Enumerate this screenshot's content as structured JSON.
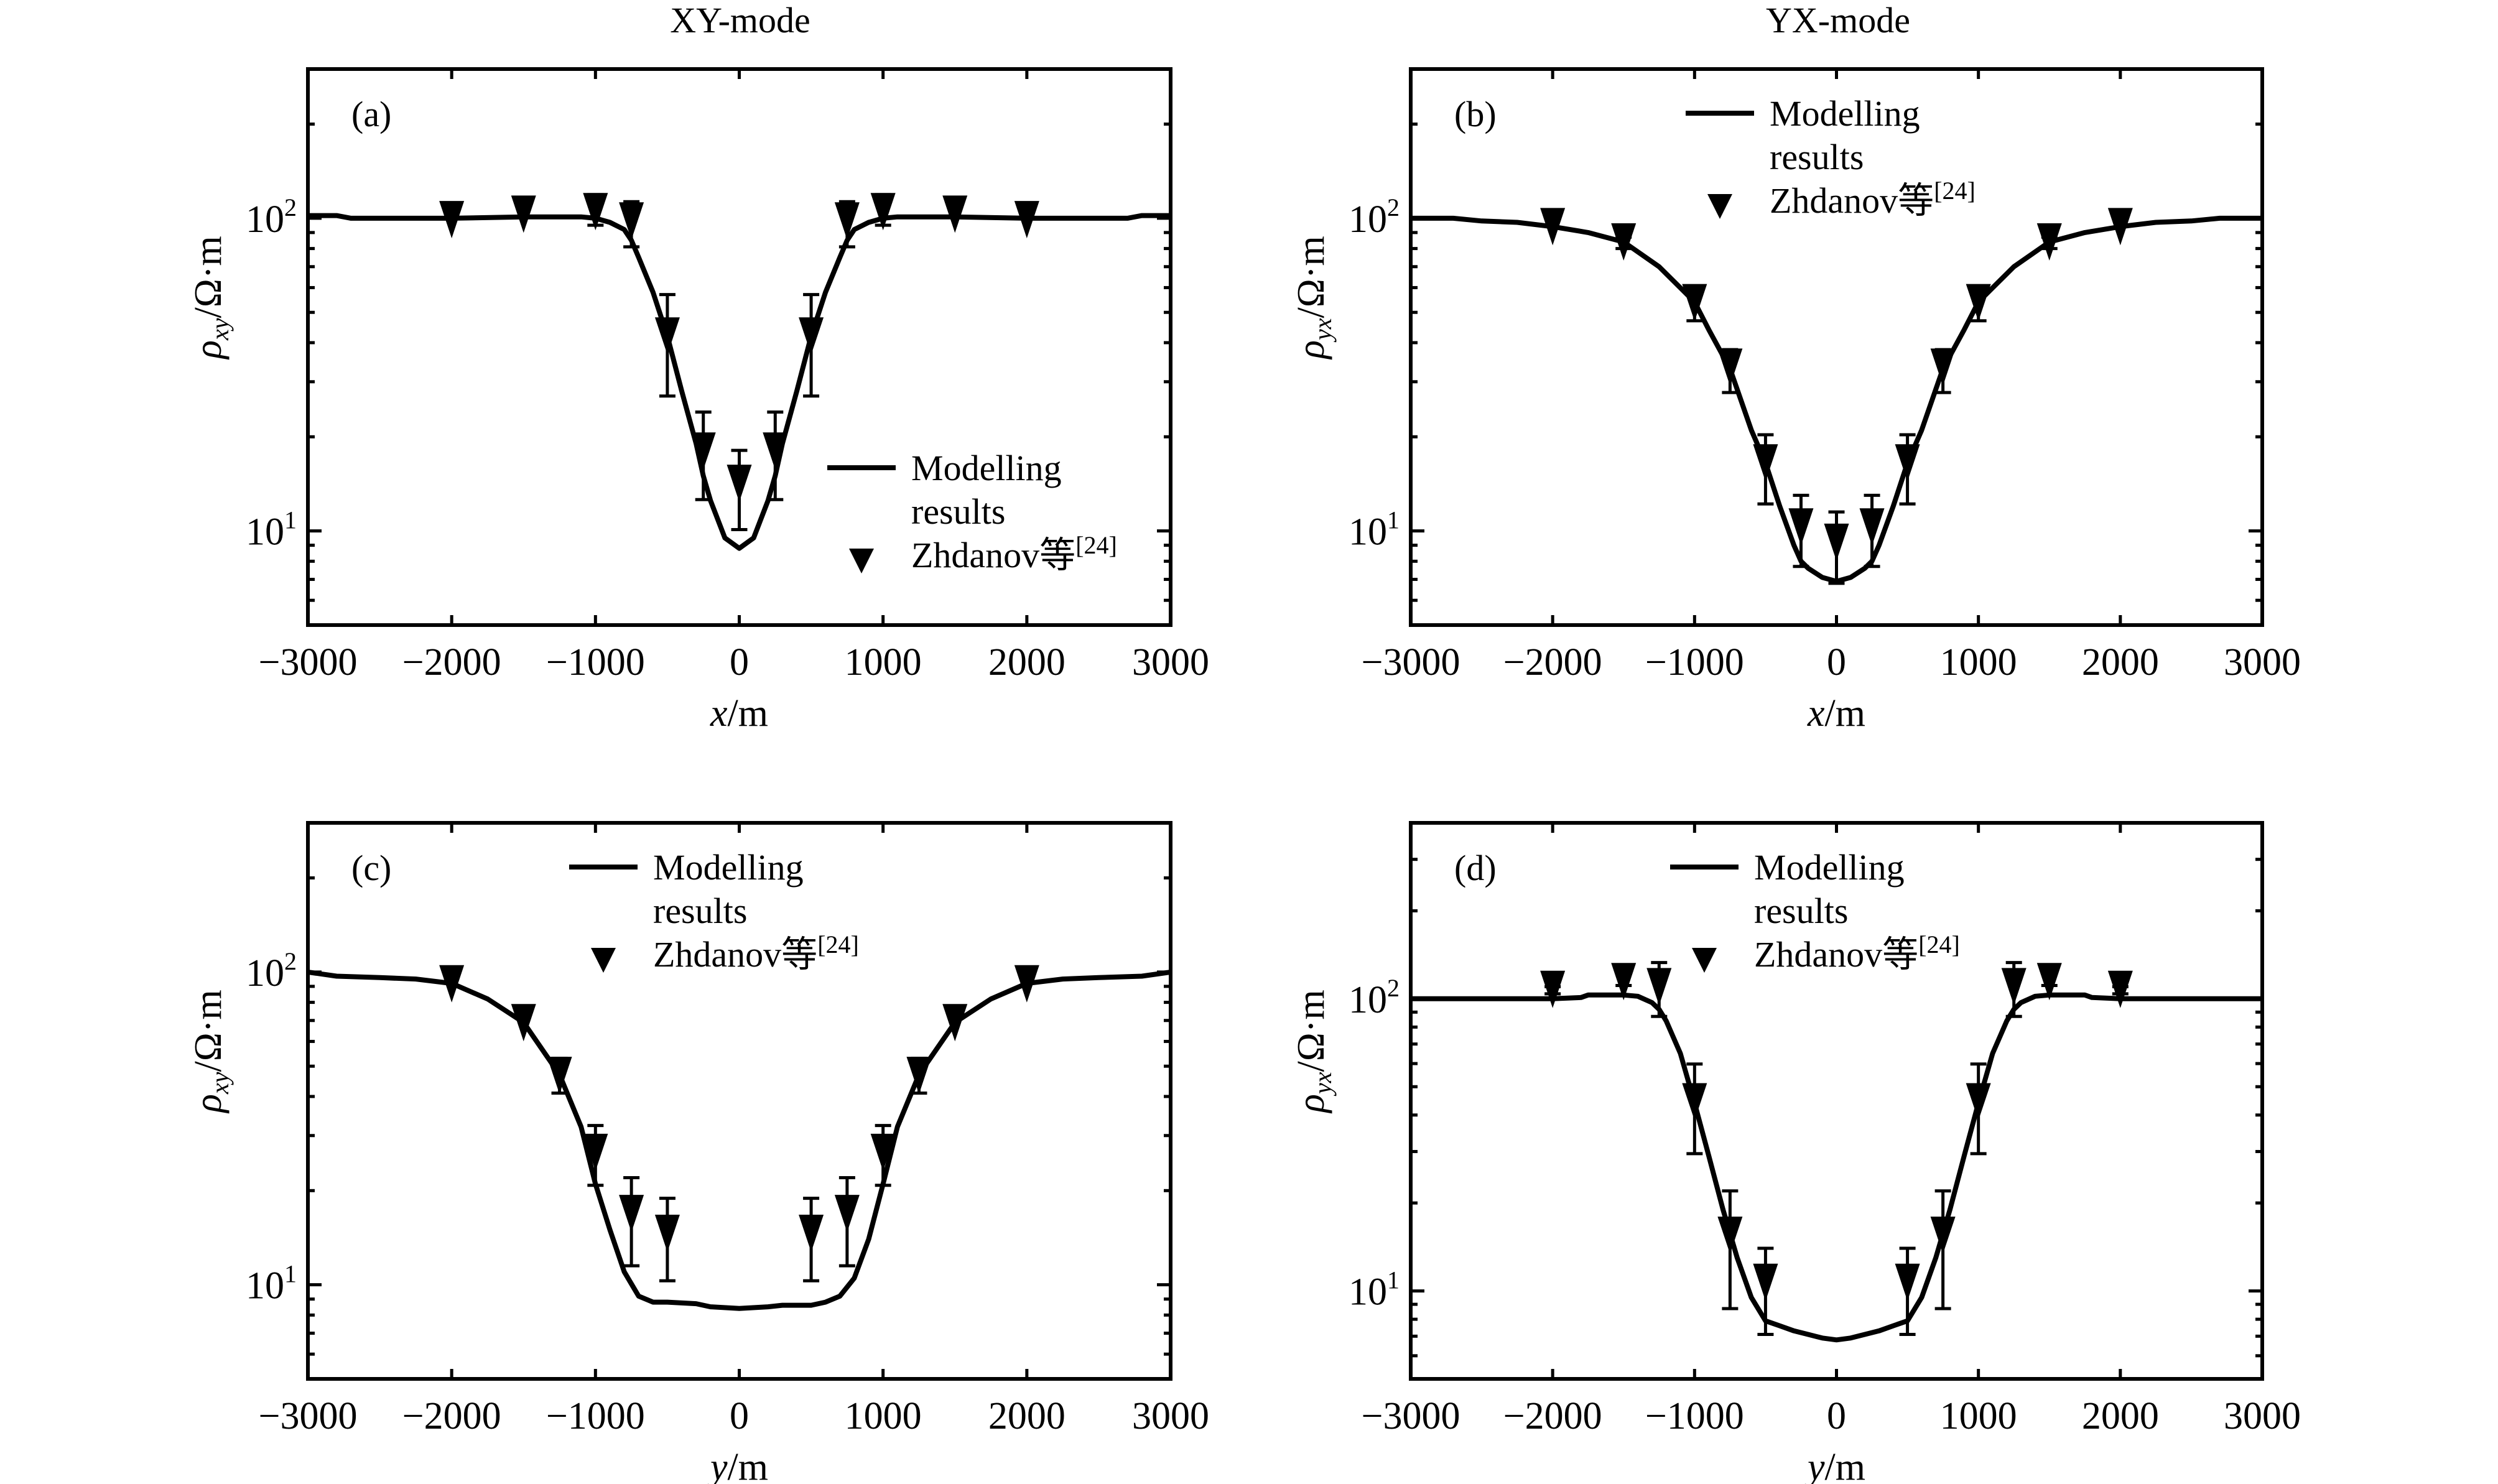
{
  "columns": [
    {
      "title": "XY-mode"
    },
    {
      "title": "YX-mode"
    }
  ],
  "chart_data": [
    {
      "type": "line",
      "panel": "(a)",
      "title": "",
      "xlabel_var": "x",
      "xlabel_unit": "/m",
      "ylabel_var": "ρ",
      "ylabel_sub": "xy",
      "ylabel_unit": "/Ω·m",
      "xscale": "linear",
      "yscale": "log",
      "xlim": [
        -3000,
        3000
      ],
      "ylim": [
        5,
        300
      ],
      "xticks": [
        -3000,
        -2000,
        -1000,
        0,
        1000,
        2000,
        3000
      ],
      "xtick_labels": [
        "−3000",
        "−2000",
        "−1000",
        "0",
        "1000",
        "2000",
        "3000"
      ],
      "yticks": [
        {
          "value": 10,
          "base": "10",
          "exp": "1"
        },
        {
          "value": 100,
          "base": "10",
          "exp": "2"
        }
      ],
      "legend": {
        "position": "lower-right",
        "line_label_1": "Modelling",
        "line_label_2": "results",
        "marker_label": "Zhdanov等",
        "marker_ref": "[24]"
      },
      "series": [
        {
          "name": "Modelling results",
          "kind": "line",
          "x": [
            -3000,
            -2800,
            -2700,
            -2000,
            -1500,
            -1100,
            -1000,
            -900,
            -800,
            -750,
            -700,
            -600,
            -500,
            -400,
            -300,
            -250,
            -200,
            -100,
            0,
            100,
            200,
            250,
            300,
            400,
            500,
            600,
            700,
            750,
            800,
            900,
            1000,
            1100,
            1500,
            2000,
            2700,
            2800,
            3000
          ],
          "y": [
            102,
            102,
            100,
            100,
            101,
            101,
            100,
            97,
            92,
            85,
            75,
            58,
            42,
            28,
            19,
            15,
            12.5,
            9.5,
            8.8,
            9.5,
            12.5,
            15,
            19,
            28,
            42,
            58,
            75,
            85,
            92,
            97,
            100,
            101,
            101,
            100,
            100,
            102,
            102
          ]
        },
        {
          "name": "Zhdanov等[24]",
          "kind": "marker-triangle-down",
          "points": [
            {
              "x": -2000,
              "y": 99,
              "lo": null,
              "hi": null
            },
            {
              "x": -1500,
              "y": 103,
              "lo": null,
              "hi": null
            },
            {
              "x": -1000,
              "y": 105,
              "lo": 95,
              "hi": 119
            },
            {
              "x": -750,
              "y": 98,
              "lo": 81,
              "hi": 113
            },
            {
              "x": -500,
              "y": 42,
              "lo": 27,
              "hi": 57
            },
            {
              "x": -250,
              "y": 18,
              "lo": 12.6,
              "hi": 24
            },
            {
              "x": 0,
              "y": 14.2,
              "lo": 10.1,
              "hi": 18.1
            },
            {
              "x": 250,
              "y": 18,
              "lo": 12.6,
              "hi": 24
            },
            {
              "x": 500,
              "y": 42,
              "lo": 27,
              "hi": 57
            },
            {
              "x": 750,
              "y": 98,
              "lo": 81,
              "hi": 113
            },
            {
              "x": 1000,
              "y": 105,
              "lo": 95,
              "hi": 119
            },
            {
              "x": 1500,
              "y": 103,
              "lo": null,
              "hi": null
            },
            {
              "x": 2000,
              "y": 99,
              "lo": null,
              "hi": null
            }
          ]
        }
      ]
    },
    {
      "type": "line",
      "panel": "(b)",
      "title": "",
      "xlabel_var": "x",
      "xlabel_unit": "/m",
      "ylabel_var": "ρ",
      "ylabel_sub": "yx",
      "ylabel_unit": "/Ω·m",
      "xscale": "linear",
      "yscale": "log",
      "xlim": [
        -3000,
        3000
      ],
      "ylim": [
        5,
        300
      ],
      "xticks": [
        -3000,
        -2000,
        -1000,
        0,
        1000,
        2000,
        3000
      ],
      "xtick_labels": [
        "−3000",
        "−2000",
        "−1000",
        "0",
        "1000",
        "2000",
        "3000"
      ],
      "yticks": [
        {
          "value": 10,
          "base": "10",
          "exp": "1"
        },
        {
          "value": 100,
          "base": "10",
          "exp": "2"
        }
      ],
      "legend": {
        "position": "upper-center",
        "line_label_1": "Modelling",
        "line_label_2": "results",
        "marker_label": "Zhdanov等",
        "marker_ref": "[24]"
      },
      "series": [
        {
          "name": "Modelling results",
          "kind": "line",
          "x": [
            -3000,
            -2700,
            -2500,
            -2250,
            -2000,
            -1750,
            -1500,
            -1250,
            -1000,
            -900,
            -750,
            -600,
            -500,
            -400,
            -300,
            -250,
            -200,
            -100,
            0,
            100,
            200,
            250,
            300,
            400,
            500,
            600,
            750,
            900,
            1000,
            1250,
            1500,
            1750,
            2000,
            2250,
            2500,
            2700,
            3000
          ],
          "y": [
            100,
            100,
            98,
            97,
            94,
            90,
            84,
            70,
            54,
            44,
            33,
            21,
            16.5,
            12,
            9,
            8,
            7.6,
            7.1,
            6.9,
            7.1,
            7.6,
            8,
            9,
            12,
            16.5,
            21,
            33,
            44,
            54,
            70,
            84,
            90,
            94,
            97,
            98,
            100,
            100
          ]
        },
        {
          "name": "Zhdanov等[24]",
          "kind": "marker-triangle-down",
          "points": [
            {
              "x": -2000,
              "y": 94,
              "lo": null,
              "hi": null
            },
            {
              "x": -1500,
              "y": 84,
              "lo": 80,
              "hi": 87
            },
            {
              "x": -1000,
              "y": 53.7,
              "lo": 47,
              "hi": 59
            },
            {
              "x": -750,
              "y": 33.4,
              "lo": 27.7,
              "hi": 38
            },
            {
              "x": -500,
              "y": 16.5,
              "lo": 12.2,
              "hi": 20.3
            },
            {
              "x": -250,
              "y": 10.3,
              "lo": 7.7,
              "hi": 13
            },
            {
              "x": 0,
              "y": 9.2,
              "lo": 6.8,
              "hi": 11.5
            },
            {
              "x": 250,
              "y": 10.3,
              "lo": 7.7,
              "hi": 13
            },
            {
              "x": 500,
              "y": 16.5,
              "lo": 12.2,
              "hi": 20.3
            },
            {
              "x": 750,
              "y": 33.4,
              "lo": 27.7,
              "hi": 38
            },
            {
              "x": 1000,
              "y": 53.7,
              "lo": 47,
              "hi": 59
            },
            {
              "x": 1500,
              "y": 84,
              "lo": 80,
              "hi": 87
            },
            {
              "x": 2000,
              "y": 94,
              "lo": null,
              "hi": null
            }
          ]
        }
      ]
    },
    {
      "type": "line",
      "panel": "(c)",
      "title": "",
      "xlabel_var": "y",
      "xlabel_unit": "/m",
      "ylabel_var": "ρ",
      "ylabel_sub": "xy",
      "ylabel_unit": "/Ω·m",
      "xscale": "linear",
      "yscale": "log",
      "xlim": [
        -3000,
        3000
      ],
      "ylim": [
        5,
        300
      ],
      "xticks": [
        -3000,
        -2000,
        -1000,
        0,
        1000,
        2000,
        3000
      ],
      "xtick_labels": [
        "−3000",
        "−2000",
        "−1000",
        "0",
        "1000",
        "2000",
        "3000"
      ],
      "yticks": [
        {
          "value": 10,
          "base": "10",
          "exp": "1"
        },
        {
          "value": 100,
          "base": "10",
          "exp": "2"
        }
      ],
      "legend": {
        "position": "upper-center",
        "line_label_1": "Modelling",
        "line_label_2": "results",
        "marker_label": "Zhdanov等",
        "marker_ref": "[24]"
      },
      "series": [
        {
          "name": "Modelling results",
          "kind": "line",
          "x": [
            -3000,
            -2800,
            -2500,
            -2250,
            -2000,
            -1750,
            -1500,
            -1250,
            -1100,
            -1000,
            -900,
            -800,
            -700,
            -600,
            -500,
            -300,
            -200,
            0,
            200,
            300,
            500,
            600,
            700,
            800,
            900,
            1000,
            1100,
            1250,
            1500,
            1750,
            2000,
            2250,
            2500,
            2800,
            3000
          ],
          "y": [
            100,
            97,
            96,
            95,
            92,
            82,
            69,
            47,
            32,
            21,
            15,
            11,
            9.2,
            8.8,
            8.8,
            8.7,
            8.5,
            8.4,
            8.5,
            8.6,
            8.6,
            8.8,
            9.2,
            10.5,
            14,
            21,
            32,
            47,
            69,
            82,
            92,
            95,
            96,
            97,
            100
          ]
        },
        {
          "name": "Zhdanov等[24]",
          "kind": "marker-triangle-down",
          "points": [
            {
              "x": -2000,
              "y": 91.7,
              "lo": null,
              "hi": null
            },
            {
              "x": -1500,
              "y": 68.9,
              "lo": null,
              "hi": null
            },
            {
              "x": -1250,
              "y": 46.7,
              "lo": 41,
              "hi": 53
            },
            {
              "x": -1000,
              "y": 26.5,
              "lo": 20.8,
              "hi": 32.3
            },
            {
              "x": -750,
              "y": 16.9,
              "lo": 11.5,
              "hi": 22
            },
            {
              "x": -500,
              "y": 14.6,
              "lo": 10.3,
              "hi": 18.9
            },
            {
              "x": 500,
              "y": 14.6,
              "lo": 10.3,
              "hi": 18.9
            },
            {
              "x": 750,
              "y": 16.9,
              "lo": 11.5,
              "hi": 22
            },
            {
              "x": 1000,
              "y": 26.5,
              "lo": 20.8,
              "hi": 32.3
            },
            {
              "x": 1250,
              "y": 46.7,
              "lo": 41,
              "hi": 53
            },
            {
              "x": 1500,
              "y": 68.9,
              "lo": null,
              "hi": null
            },
            {
              "x": 2000,
              "y": 91.7,
              "lo": null,
              "hi": null
            }
          ]
        }
      ]
    },
    {
      "type": "line",
      "panel": "(d)",
      "title": "",
      "xlabel_var": "y",
      "xlabel_unit": "/m",
      "ylabel_var": "ρ",
      "ylabel_sub": "yx",
      "ylabel_unit": "/Ω·m",
      "xscale": "linear",
      "yscale": "log",
      "xlim": [
        -3000,
        3000
      ],
      "ylim": [
        5,
        400
      ],
      "xticks": [
        -3000,
        -2000,
        -1000,
        0,
        1000,
        2000,
        3000
      ],
      "xtick_labels": [
        "−3000",
        "−2000",
        "−1000",
        "0",
        "1000",
        "2000",
        "3000"
      ],
      "yticks": [
        {
          "value": 10,
          "base": "10",
          "exp": "1"
        },
        {
          "value": 100,
          "base": "10",
          "exp": "2"
        }
      ],
      "legend": {
        "position": "upper-center",
        "line_label_1": "Modelling",
        "line_label_2": "results",
        "marker_label": "Zhdanov等",
        "marker_ref": "[24]"
      },
      "series": [
        {
          "name": "Modelling results",
          "kind": "line",
          "x": [
            -3000,
            -2000,
            -1800,
            -1750,
            -1500,
            -1400,
            -1300,
            -1250,
            -1200,
            -1100,
            -1000,
            -900,
            -800,
            -700,
            -600,
            -500,
            -400,
            -300,
            -200,
            -100,
            0,
            100,
            200,
            300,
            400,
            500,
            600,
            700,
            800,
            900,
            1000,
            1100,
            1200,
            1250,
            1300,
            1400,
            1500,
            1750,
            1800,
            2000,
            3000
          ],
          "y": [
            100,
            100,
            101,
            103,
            103,
            102,
            97,
            92,
            84,
            65,
            44,
            29,
            19,
            13,
            9.5,
            7.9,
            7.6,
            7.3,
            7.1,
            6.9,
            6.8,
            6.9,
            7.1,
            7.3,
            7.6,
            7.9,
            9.5,
            13,
            19,
            29,
            44,
            65,
            84,
            92,
            97,
            102,
            103,
            103,
            101,
            100,
            100
          ]
        },
        {
          "name": "Zhdanov等[24]",
          "kind": "marker-triangle-down",
          "points": [
            {
              "x": -2000,
              "y": 107.7,
              "lo": 104,
              "hi": 110
            },
            {
              "x": -1500,
              "y": 114.5,
              "lo": 111,
              "hi": 130
            },
            {
              "x": -1250,
              "y": 110,
              "lo": 87,
              "hi": 133
            },
            {
              "x": -1000,
              "y": 44.4,
              "lo": 29.5,
              "hi": 59.8
            },
            {
              "x": -750,
              "y": 15.5,
              "lo": 8.7,
              "hi": 22
            },
            {
              "x": -500,
              "y": 10.7,
              "lo": 7.1,
              "hi": 14
            },
            {
              "x": 500,
              "y": 10.7,
              "lo": 7.1,
              "hi": 14
            },
            {
              "x": 750,
              "y": 15.5,
              "lo": 8.7,
              "hi": 22
            },
            {
              "x": 1000,
              "y": 44.4,
              "lo": 29.5,
              "hi": 59.8
            },
            {
              "x": 1250,
              "y": 110,
              "lo": 87,
              "hi": 133
            },
            {
              "x": 1500,
              "y": 114.5,
              "lo": 111,
              "hi": 130
            },
            {
              "x": 2000,
              "y": 107.7,
              "lo": 104,
              "hi": 110
            }
          ]
        }
      ]
    }
  ]
}
